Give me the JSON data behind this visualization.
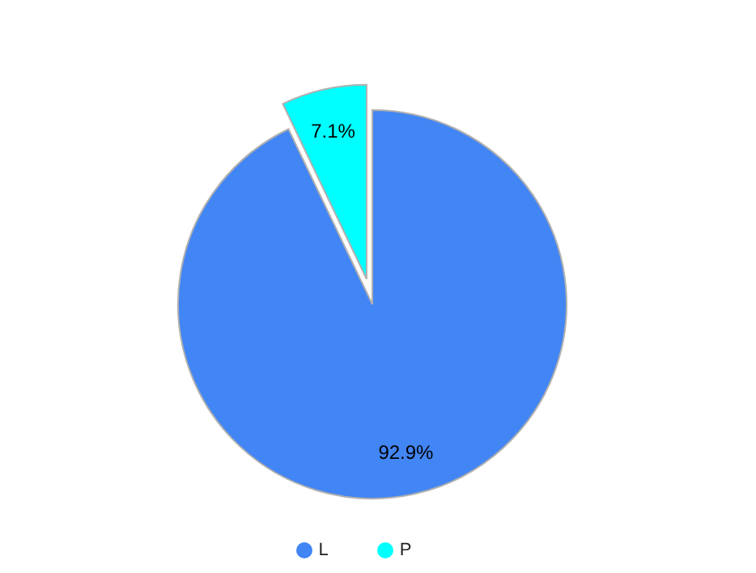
{
  "chart_data": {
    "type": "pie",
    "categories": [
      "L",
      "P"
    ],
    "values": [
      92.9,
      7.1
    ],
    "colors": [
      "#4285f4",
      "#00ffff"
    ],
    "value_labels": [
      "92.9%",
      "7.1%"
    ],
    "legend": "bottom"
  }
}
